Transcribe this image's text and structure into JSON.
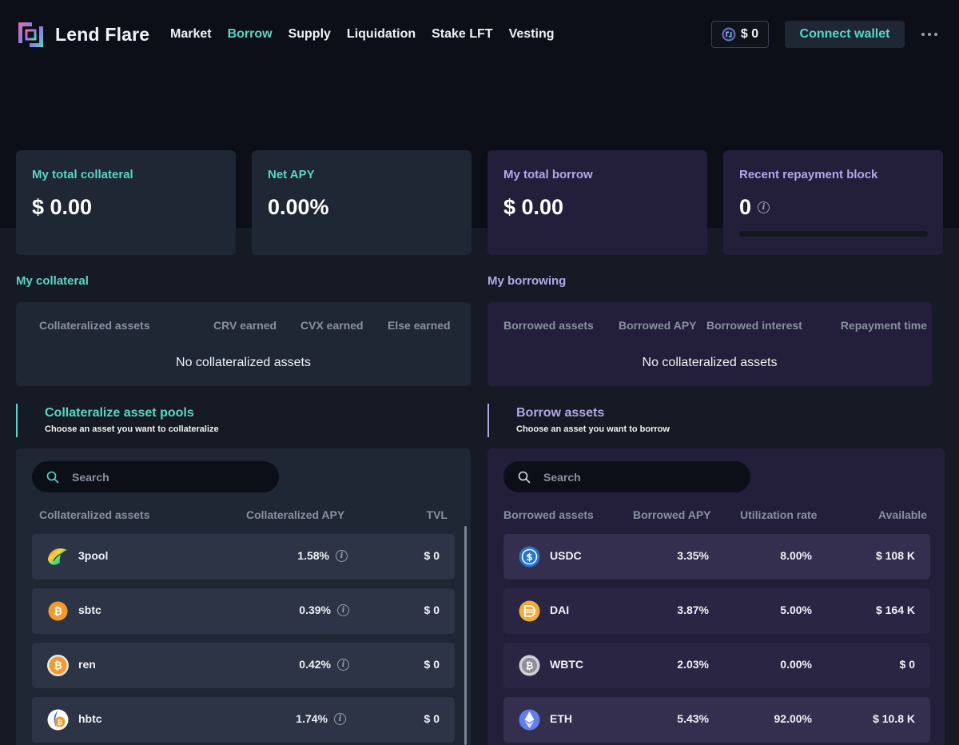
{
  "brand": {
    "name": "Lend Flare"
  },
  "nav": {
    "items": [
      "Market",
      "Borrow",
      "Supply",
      "Liquidation",
      "Stake LFT",
      "Vesting"
    ],
    "active": "Borrow",
    "balance": "$ 0",
    "connect_label": "Connect wallet"
  },
  "stats": {
    "collateral": {
      "label": "My total collateral",
      "value": "$ 0.00"
    },
    "net_apy": {
      "label": "Net APY",
      "value": "0.00%"
    },
    "borrow": {
      "label": "My total borrow",
      "value": "$ 0.00"
    },
    "repayment": {
      "label": "Recent repayment block",
      "value": "0",
      "progress": 0
    }
  },
  "my_collateral": {
    "title": "My collateral",
    "columns": [
      "Collateralized assets",
      "CRV earned",
      "CVX earned",
      "Else earned"
    ],
    "empty": "No collateralized assets"
  },
  "my_borrowing": {
    "title": "My borrowing",
    "columns": [
      "Borrowed assets",
      "Borrowed APY",
      "Borrowed interest",
      "Repayment time"
    ],
    "empty": "No collateralized assets"
  },
  "collateral_pools": {
    "title": "Collateralize asset pools",
    "subtitle": "Choose an asset you want to collateralize",
    "search_placeholder": "Search",
    "columns": [
      "Collateralized assets",
      "Collateralized APY",
      "TVL"
    ],
    "rows": [
      {
        "name": "3pool",
        "apy": "1.58%",
        "tvl": "$ 0",
        "icon": "curve-3pool-icon"
      },
      {
        "name": "sbtc",
        "apy": "0.39%",
        "tvl": "$ 0",
        "icon": "sbtc-icon"
      },
      {
        "name": "ren",
        "apy": "0.42%",
        "tvl": "$ 0",
        "icon": "renbtc-icon"
      },
      {
        "name": "hbtc",
        "apy": "1.74%",
        "tvl": "$ 0",
        "icon": "hbtc-icon"
      }
    ]
  },
  "borrow_assets": {
    "title": "Borrow assets",
    "subtitle": "Choose an asset you want to borrow",
    "search_placeholder": "Search",
    "columns": [
      "Borrowed assets",
      "Borrowed APY",
      "Utilization rate",
      "Available"
    ],
    "rows": [
      {
        "name": "USDC",
        "apy": "3.35%",
        "utilization": "8.00%",
        "available": "$ 108 K",
        "icon": "usdc-icon"
      },
      {
        "name": "DAI",
        "apy": "3.87%",
        "utilization": "5.00%",
        "available": "$ 164 K",
        "icon": "dai-icon"
      },
      {
        "name": "WBTC",
        "apy": "2.03%",
        "utilization": "0.00%",
        "available": "$ 0",
        "icon": "wbtc-icon"
      },
      {
        "name": "ETH",
        "apy": "5.43%",
        "utilization": "92.00%",
        "available": "$ 10.8 K",
        "icon": "eth-icon"
      }
    ]
  },
  "colors": {
    "accent_teal": "#5ad6c4",
    "accent_purple": "#b1a8e8",
    "background": "#0d0f18"
  }
}
